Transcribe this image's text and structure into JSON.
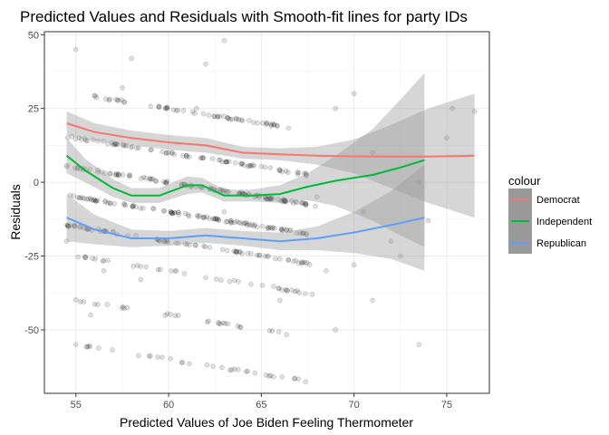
{
  "chart_data": {
    "type": "scatter",
    "title": "Predicted Values and Residuals with Smooth-fit lines for party IDs",
    "xlabel": "Predicted Values of Joe Biden Feeling Thermometer",
    "ylabel": "Residuals",
    "xlim": [
      53.3,
      77.3
    ],
    "ylim": [
      -71.5,
      51
    ],
    "x_ticks": [
      55,
      60,
      65,
      70,
      75
    ],
    "y_ticks": [
      -50,
      -25,
      0,
      25,
      50
    ],
    "grid": true,
    "legend_title": "colour",
    "legend_position": "right",
    "points_note": "semi-transparent grey points lying along diagonal bands of residual = value - predicted",
    "point_bands": [
      {
        "value": 85,
        "x_range": [
          56.0,
          66.5
        ],
        "n": 60
      },
      {
        "value": 70,
        "x_range": [
          54.5,
          67.5
        ],
        "n": 80
      },
      {
        "value": 60,
        "x_range": [
          54.5,
          68.0
        ],
        "n": 120
      },
      {
        "value": 50,
        "x_range": [
          54.5,
          67.5
        ],
        "n": 110
      },
      {
        "value": 40,
        "x_range": [
          54.5,
          68.0
        ],
        "n": 80
      },
      {
        "value": 30,
        "x_range": [
          55.0,
          68.0
        ],
        "n": 40
      },
      {
        "value": 15,
        "x_range": [
          55.0,
          67.0
        ],
        "n": 30
      },
      {
        "value": 0,
        "x_range": [
          55.0,
          67.5
        ],
        "n": 35
      }
    ],
    "scattered_points": [
      [
        61.5,
        25
      ],
      [
        62.0,
        40
      ],
      [
        63.0,
        48
      ],
      [
        58.0,
        42
      ],
      [
        57.5,
        32
      ],
      [
        69.0,
        25
      ],
      [
        70.0,
        30
      ],
      [
        71.0,
        10
      ],
      [
        73.5,
        0
      ],
      [
        74.0,
        -13
      ],
      [
        75.0,
        15
      ],
      [
        75.3,
        25
      ],
      [
        76.5,
        24
      ],
      [
        73.5,
        -55
      ],
      [
        71.0,
        -40
      ],
      [
        72.5,
        -25
      ],
      [
        70.0,
        -28
      ],
      [
        69.0,
        -50
      ],
      [
        68.5,
        -30
      ],
      [
        70.5,
        -10
      ],
      [
        72.0,
        -20
      ],
      [
        68.0,
        -5
      ],
      [
        54.5,
        -20
      ],
      [
        55.0,
        45
      ],
      [
        56.5,
        -30
      ],
      [
        58.5,
        -33
      ],
      [
        60.0,
        10
      ],
      [
        55.8,
        -45
      ],
      [
        63.0,
        -10
      ],
      [
        66.0,
        -40
      ]
    ],
    "series": [
      {
        "name": "Democrat",
        "color": "#F8766D",
        "x": [
          54.5,
          56,
          58,
          60,
          62,
          64,
          66,
          68,
          70,
          72,
          74,
          76.5
        ],
        "y": [
          20,
          17,
          15,
          13.5,
          12.5,
          10,
          9.5,
          9,
          8.8,
          8.7,
          8.7,
          9
        ],
        "ci_lower": [
          16,
          14,
          12.5,
          11,
          10,
          8,
          7.5,
          6,
          3,
          -2,
          -7,
          -12
        ],
        "ci_upper": [
          24,
          20,
          17.5,
          16,
          15,
          12,
          11.5,
          12,
          14.5,
          19.5,
          25,
          30
        ]
      },
      {
        "name": "Independent",
        "color": "#00BA38",
        "x": [
          54.5,
          55.5,
          57,
          58,
          59.5,
          61,
          61.8,
          63,
          64.5,
          66,
          67.5,
          69,
          71,
          72.5,
          73.8
        ],
        "y": [
          9,
          4,
          -2,
          -4.5,
          -4.5,
          -1,
          -1,
          -4.5,
          -4.5,
          -4,
          -1.5,
          0.5,
          2.5,
          5,
          7.5
        ],
        "ci_lower": [
          3,
          0,
          -5,
          -7,
          -7,
          -4,
          -3.5,
          -6.5,
          -6.5,
          -7,
          -6,
          -8,
          -13,
          -18,
          -22
        ],
        "ci_upper": [
          15,
          8,
          1,
          -2,
          -2,
          2,
          1.5,
          -2.5,
          -2.5,
          -1,
          3,
          9,
          18,
          28,
          37
        ]
      },
      {
        "name": "Republican",
        "color": "#619CFF",
        "x": [
          54.5,
          56,
          58,
          60,
          62,
          64,
          66,
          68,
          70,
          72,
          73.8
        ],
        "y": [
          -12,
          -16,
          -19,
          -19,
          -18,
          -19,
          -20,
          -19,
          -17,
          -14.5,
          -12
        ],
        "ci_lower": [
          -20,
          -21,
          -22,
          -21.5,
          -20.5,
          -21.5,
          -23,
          -23,
          -24,
          -26,
          -30
        ],
        "ci_upper": [
          -4,
          -11,
          -16,
          -16.5,
          -15.5,
          -16.5,
          -17,
          -15,
          -10,
          -3,
          6
        ]
      }
    ]
  }
}
